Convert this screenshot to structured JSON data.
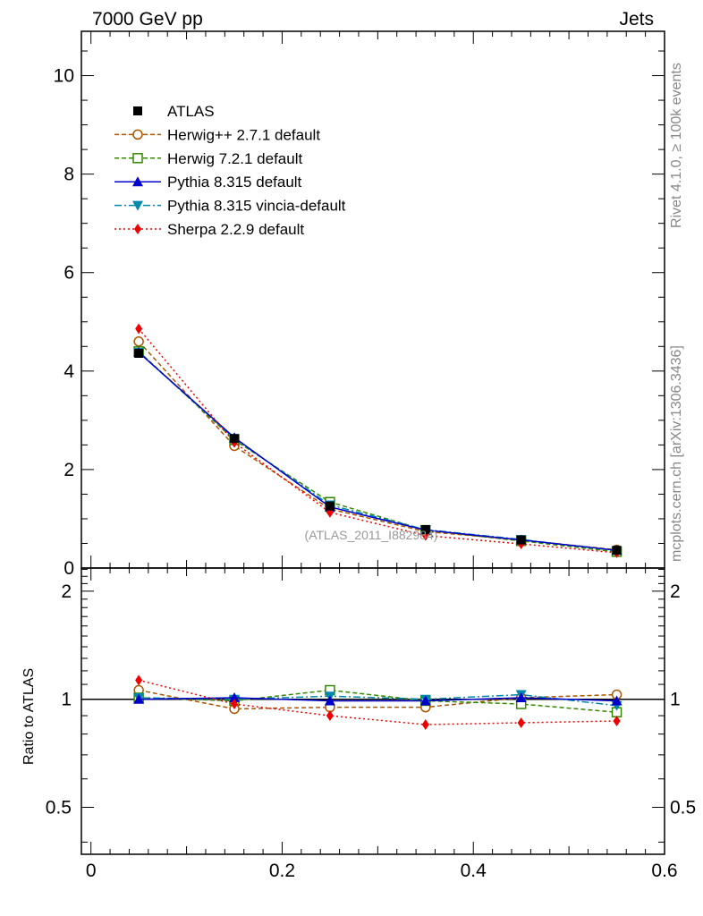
{
  "header": {
    "left": "7000 GeV pp",
    "right": "Jets"
  },
  "side_text": {
    "rivet": "Rivet 4.1.0, ≥ 100k events",
    "mcplots": "mcplots.cern.ch [arXiv:1306.3436]"
  },
  "watermark": "(ATLAS_2011_I882984)",
  "chart_data": [
    {
      "type": "line",
      "panel": "main",
      "title": "",
      "xlabel": "",
      "ylabel": "",
      "xlim": [
        -0.01,
        0.6
      ],
      "ylim": [
        0,
        10.9
      ],
      "yticks": [
        0,
        2,
        4,
        6,
        8,
        10
      ],
      "ytick_labels": [
        "0",
        "2",
        "4",
        "6",
        "8",
        "10"
      ],
      "x": [
        0.05,
        0.15,
        0.25,
        0.35,
        0.45,
        0.55
      ],
      "series": [
        {
          "name": "ATLAS",
          "color": "#000000",
          "marker": "square",
          "dash": "none",
          "line": false,
          "values": [
            4.36,
            2.63,
            1.26,
            0.78,
            0.57,
            0.36
          ]
        },
        {
          "name": "Herwig++ 2.7.1 default",
          "color": "#aa5500",
          "marker": "circle-open",
          "dash": "5,3",
          "line": true,
          "values": [
            4.6,
            2.48,
            1.2,
            0.74,
            0.57,
            0.37
          ]
        },
        {
          "name": "Herwig 7.2.1 default",
          "color": "#338800",
          "marker": "square-open",
          "dash": "5,3",
          "line": true,
          "values": [
            4.4,
            2.6,
            1.34,
            0.77,
            0.55,
            0.33
          ]
        },
        {
          "name": "Pythia 8.315 default",
          "color": "#0000cc",
          "marker": "triangle-up",
          "dash": "none",
          "line": true,
          "values": [
            4.38,
            2.65,
            1.24,
            0.77,
            0.57,
            0.36
          ]
        },
        {
          "name": "Pythia 8.315 vincia-default",
          "color": "#0088aa",
          "marker": "triangle-down",
          "dash": "8,3,2,3",
          "line": true,
          "values": [
            4.38,
            2.63,
            1.28,
            0.78,
            0.58,
            0.35
          ]
        },
        {
          "name": "Sherpa 2.2.9 default",
          "color": "#ee0000",
          "marker": "diamond",
          "dash": "2,3",
          "line": true,
          "values": [
            4.86,
            2.55,
            1.13,
            0.66,
            0.49,
            0.31
          ]
        }
      ]
    },
    {
      "type": "line",
      "panel": "ratio",
      "title": "",
      "xlabel": "",
      "ylabel": "Ratio to ATLAS",
      "xlim": [
        -0.01,
        0.6
      ],
      "ylim": [
        0.37,
        2.32
      ],
      "yticks": [
        0.5,
        1,
        2
      ],
      "ytick_labels": [
        "0.5",
        "1",
        "2"
      ],
      "xticks": [
        0,
        0.2,
        0.4,
        0.6
      ],
      "xtick_labels": [
        "0",
        "0.2",
        "0.4",
        "0.6"
      ],
      "x": [
        0.05,
        0.15,
        0.25,
        0.35,
        0.45,
        0.55
      ],
      "series": [
        {
          "name": "Herwig++ 2.7.1 default",
          "values": [
            1.06,
            0.94,
            0.95,
            0.95,
            1.01,
            1.03
          ]
        },
        {
          "name": "Herwig 7.2.1 default",
          "values": [
            1.01,
            0.99,
            1.06,
            0.99,
            0.97,
            0.92
          ]
        },
        {
          "name": "Pythia 8.315 default",
          "values": [
            1.0,
            1.01,
            0.99,
            0.99,
            1.01,
            0.99
          ]
        },
        {
          "name": "Pythia 8.315 vincia-default",
          "values": [
            1.01,
            1.0,
            1.02,
            1.0,
            1.03,
            0.96
          ]
        },
        {
          "name": "Sherpa 2.2.9 default",
          "values": [
            1.13,
            0.97,
            0.9,
            0.85,
            0.86,
            0.87
          ]
        }
      ]
    }
  ]
}
